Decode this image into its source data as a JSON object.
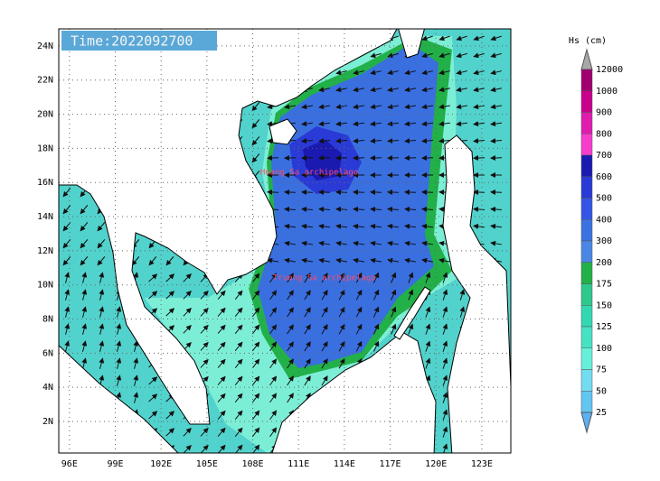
{
  "map": {
    "time_label": "Time:2022092700",
    "lonlim": [
      95.3,
      124.9
    ],
    "latlim": [
      0.15,
      25
    ],
    "lonticks": [
      {
        "value": 96,
        "label": "96E"
      },
      {
        "value": 99,
        "label": "99E"
      },
      {
        "value": 102,
        "label": "102E"
      },
      {
        "value": 105,
        "label": "105E"
      },
      {
        "value": 108,
        "label": "108E"
      },
      {
        "value": 111,
        "label": "111E"
      },
      {
        "value": 114,
        "label": "114E"
      },
      {
        "value": 117,
        "label": "117E"
      },
      {
        "value": 120,
        "label": "120E"
      },
      {
        "value": 123,
        "label": "123E"
      }
    ],
    "latticks": [
      {
        "value": 24,
        "label": "24N"
      },
      {
        "value": 22,
        "label": "22N"
      },
      {
        "value": 20,
        "label": "20N"
      },
      {
        "value": 18,
        "label": "18N"
      },
      {
        "value": 16,
        "label": "16N"
      },
      {
        "value": 14,
        "label": "14N"
      },
      {
        "value": 12,
        "label": "12N"
      },
      {
        "value": 10,
        "label": "10N"
      },
      {
        "value": 8,
        "label": "8N"
      },
      {
        "value": 6,
        "label": "6N"
      },
      {
        "value": 4,
        "label": "4N"
      },
      {
        "value": 2,
        "label": "2N"
      }
    ],
    "grid": true,
    "places": [
      {
        "name": "Hoang Sa archipelago",
        "lon": 111.7,
        "lat": 16.6
      },
      {
        "name": "Truong Sa archipelago",
        "lon": 112.7,
        "lat": 10.4
      }
    ]
  },
  "legend": {
    "title": "Hs (cm)",
    "levels": [
      12000,
      1000,
      900,
      800,
      700,
      600,
      500,
      400,
      300,
      200,
      175,
      150,
      125,
      100,
      75,
      50,
      25
    ],
    "colors": [
      "#a0006e",
      "#c8008c",
      "#e01cae",
      "#f83ccc",
      "#1a1ab0",
      "#2a3ad6",
      "#3454e6",
      "#3a72e2",
      "#4a86e4",
      "#22b048",
      "#2ec88c",
      "#34d8b0",
      "#46e2c4",
      "#66f0da",
      "#74dcf0",
      "#62c6f0"
    ],
    "over_color": "#a8a8a8",
    "under_color": "#5eb0f0"
  }
}
